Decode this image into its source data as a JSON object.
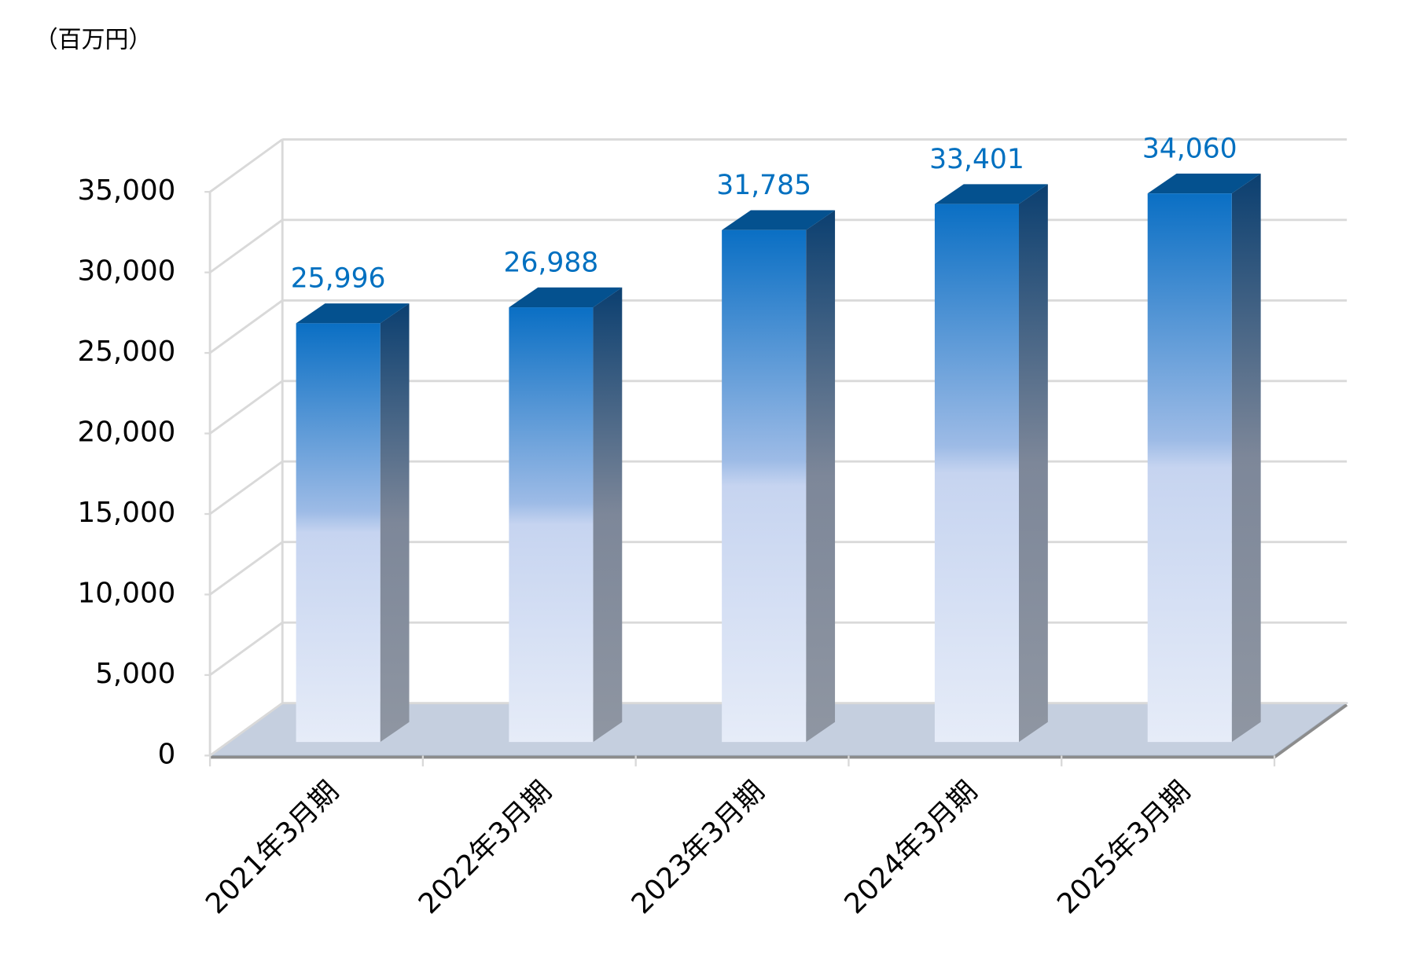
{
  "chart_data": {
    "type": "bar3d",
    "unit_label": "（百万円）",
    "categories": [
      "2021年3月期",
      "2022年3月期",
      "2023年3月期",
      "2024年3月期",
      "2025年3月期"
    ],
    "values": [
      25996,
      26988,
      31785,
      33401,
      34060
    ],
    "value_labels": [
      "25,996",
      "26,988",
      "31,785",
      "33,401",
      "34,060"
    ],
    "ylim": [
      0,
      35000
    ],
    "yticks": [
      0,
      {
        "value": 5000,
        "label": "5,000"
      },
      {
        "value": 10000,
        "label": "10,000"
      },
      {
        "value": 15000,
        "label": "15,000"
      },
      {
        "value": 20000,
        "label": "20,000"
      },
      {
        "value": 25000,
        "label": "25,000"
      },
      {
        "value": 30000,
        "label": "30,000"
      },
      {
        "value": 35000,
        "label": "35,000"
      }
    ],
    "color": "#0070c0",
    "grid": true
  }
}
